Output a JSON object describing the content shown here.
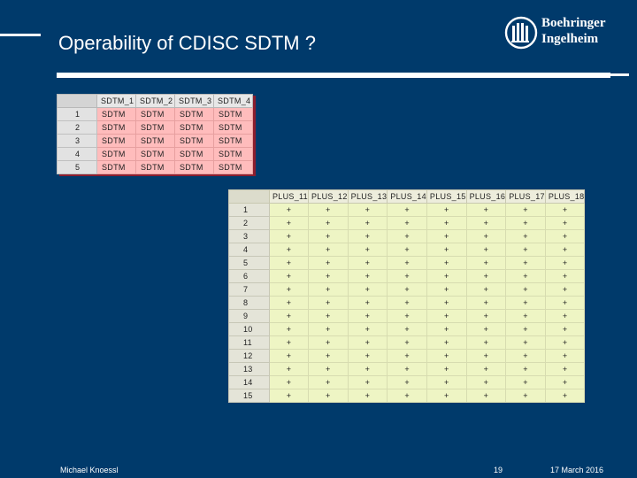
{
  "slide": {
    "title": "Operability of CDISC SDTM ?",
    "logo_line1": "Boehringer",
    "logo_line2": "Ingelheim"
  },
  "sdtm_table": {
    "columns": [
      "SDTM_1",
      "SDTM_2",
      "SDTM_3",
      "SDTM_4"
    ],
    "row_headers": [
      "1",
      "2",
      "3",
      "4",
      "5"
    ],
    "cell_value": "SDTM"
  },
  "plus_table": {
    "columns": [
      "PLUS_11",
      "PLUS_12",
      "PLUS_13",
      "PLUS_14",
      "PLUS_15",
      "PLUS_16",
      "PLUS_17",
      "PLUS_18"
    ],
    "row_headers": [
      "1",
      "2",
      "3",
      "4",
      "5",
      "6",
      "7",
      "8",
      "9",
      "10",
      "11",
      "12",
      "13",
      "14",
      "15"
    ],
    "cell_value": "+"
  },
  "footer": {
    "author": "Michael Knoessl",
    "page": "19",
    "date": "17 March 2016"
  }
}
